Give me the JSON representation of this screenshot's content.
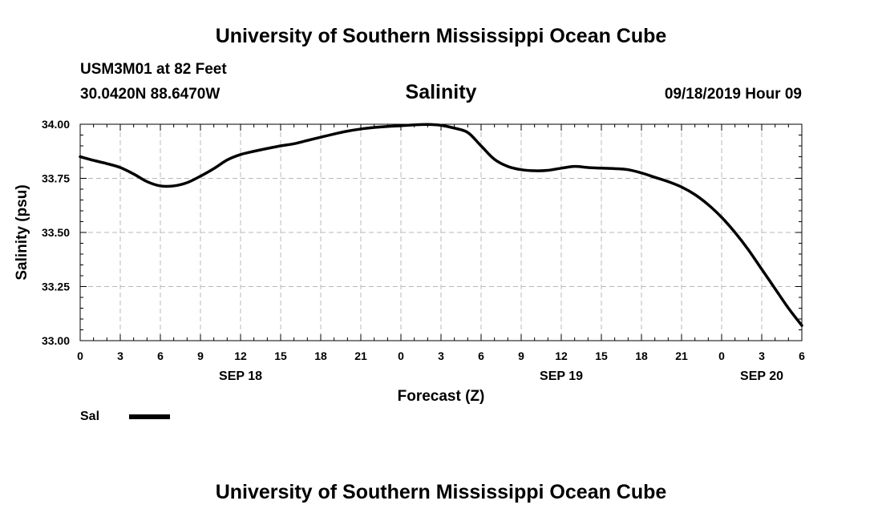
{
  "header": {
    "title": "University of Southern Mississippi Ocean Cube",
    "station": "USM3M01 at 82 Feet",
    "coordinates": "30.0420N 88.6470W",
    "datetime": "09/18/2019 Hour 09"
  },
  "footer": {
    "title": "University of Southern Mississippi Ocean Cube"
  },
  "legend": {
    "label": "Sal",
    "color": "#000000"
  },
  "chart_data": {
    "type": "line",
    "title": "Salinity",
    "xlabel": "Forecast (Z)",
    "ylabel": "Salinity (psu)",
    "ylim": [
      33.0,
      34.0
    ],
    "xlim": [
      0,
      54
    ],
    "x_unit": "hours since 09/18/2019 00Z",
    "grid": true,
    "legend_position": "bottom-left",
    "y_ticks": [
      "33.00",
      "33.25",
      "33.50",
      "33.75",
      "34.00"
    ],
    "y_tick_values": [
      33.0,
      33.25,
      33.5,
      33.75,
      34.0
    ],
    "x_ticks": [
      "0",
      "3",
      "6",
      "9",
      "12",
      "15",
      "18",
      "21",
      "0",
      "3",
      "6",
      "9",
      "12",
      "15",
      "18",
      "21",
      "0",
      "3",
      "6"
    ],
    "x_tick_values": [
      0,
      3,
      6,
      9,
      12,
      15,
      18,
      21,
      24,
      27,
      30,
      33,
      36,
      39,
      42,
      45,
      48,
      51,
      54
    ],
    "date_labels": [
      {
        "label": "SEP 18",
        "x": 12
      },
      {
        "label": "SEP 19",
        "x": 36
      },
      {
        "label": "SEP 20",
        "x": 51
      }
    ],
    "series": [
      {
        "name": "Sal",
        "x": [
          0,
          1,
          2,
          3,
          4,
          5,
          6,
          7,
          8,
          9,
          10,
          11,
          12,
          13,
          14,
          15,
          16,
          17,
          18,
          19,
          20,
          21,
          22,
          23,
          24,
          25,
          26,
          27,
          28,
          29,
          30,
          31,
          32,
          33,
          34,
          35,
          36,
          37,
          38,
          39,
          40,
          41,
          42,
          43,
          44,
          45,
          46,
          47,
          48,
          49,
          50,
          51,
          52,
          53,
          54
        ],
        "values": [
          33.85,
          33.833,
          33.818,
          33.8,
          33.77,
          33.735,
          33.715,
          33.715,
          33.73,
          33.76,
          33.795,
          33.835,
          33.86,
          33.875,
          33.888,
          33.9,
          33.91,
          33.925,
          33.94,
          33.955,
          33.968,
          33.978,
          33.985,
          33.99,
          33.993,
          33.997,
          33.999,
          33.995,
          33.982,
          33.962,
          33.9,
          33.838,
          33.805,
          33.79,
          33.785,
          33.787,
          33.797,
          33.805,
          33.8,
          33.797,
          33.795,
          33.79,
          33.775,
          33.755,
          33.735,
          33.71,
          33.675,
          33.628,
          33.57,
          33.5,
          33.42,
          33.33,
          33.24,
          33.15,
          33.07
        ]
      }
    ]
  }
}
